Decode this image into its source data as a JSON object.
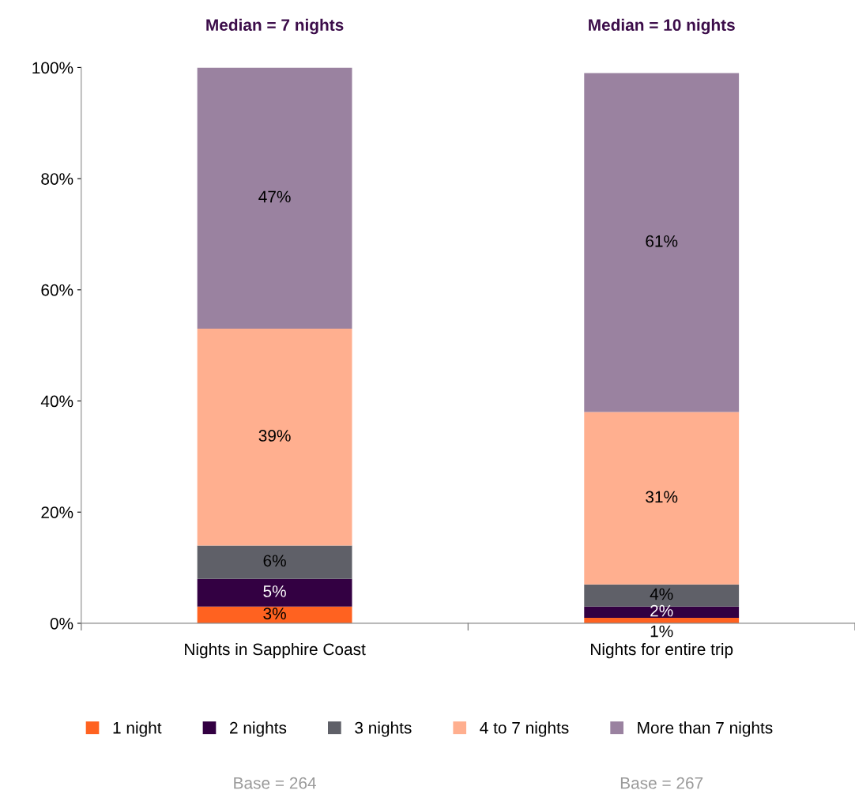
{
  "chart_data": {
    "type": "bar",
    "stacked": true,
    "categories": [
      "Nights in Sapphire Coast",
      "Nights for entire trip"
    ],
    "series": [
      {
        "name": "1 night",
        "color": "#ff6220",
        "values": [
          3,
          1
        ],
        "value_labels": [
          "3%",
          "1%"
        ]
      },
      {
        "name": "2 nights",
        "color": "#330042",
        "values": [
          5,
          2
        ],
        "value_labels": [
          "5%",
          "2%"
        ]
      },
      {
        "name": "3 nights",
        "color": "#5f6068",
        "values": [
          6,
          4
        ],
        "value_labels": [
          "6%",
          "4%"
        ]
      },
      {
        "name": "4 to 7 nights",
        "color": "#ffaf8f",
        "values": [
          39,
          31
        ],
        "value_labels": [
          "39%",
          "31%"
        ]
      },
      {
        "name": "More than 7 nights",
        "color": "#9a82a0",
        "values": [
          47,
          61
        ],
        "value_labels": [
          "47%",
          "61%"
        ]
      }
    ],
    "ylim": [
      0,
      100
    ],
    "yticks": [
      {
        "value": 0,
        "label": "0%"
      },
      {
        "value": 20,
        "label": "20%"
      },
      {
        "value": 40,
        "label": "40%"
      },
      {
        "value": 60,
        "label": "60%"
      },
      {
        "value": 80,
        "label": "80%"
      },
      {
        "value": 100,
        "label": "100%"
      }
    ],
    "grid": false,
    "legend": "bottom",
    "annotations": [
      "Median = 7 nights",
      "Median = 10 nights",
      "Base = 264",
      "Base = 267"
    ]
  }
}
